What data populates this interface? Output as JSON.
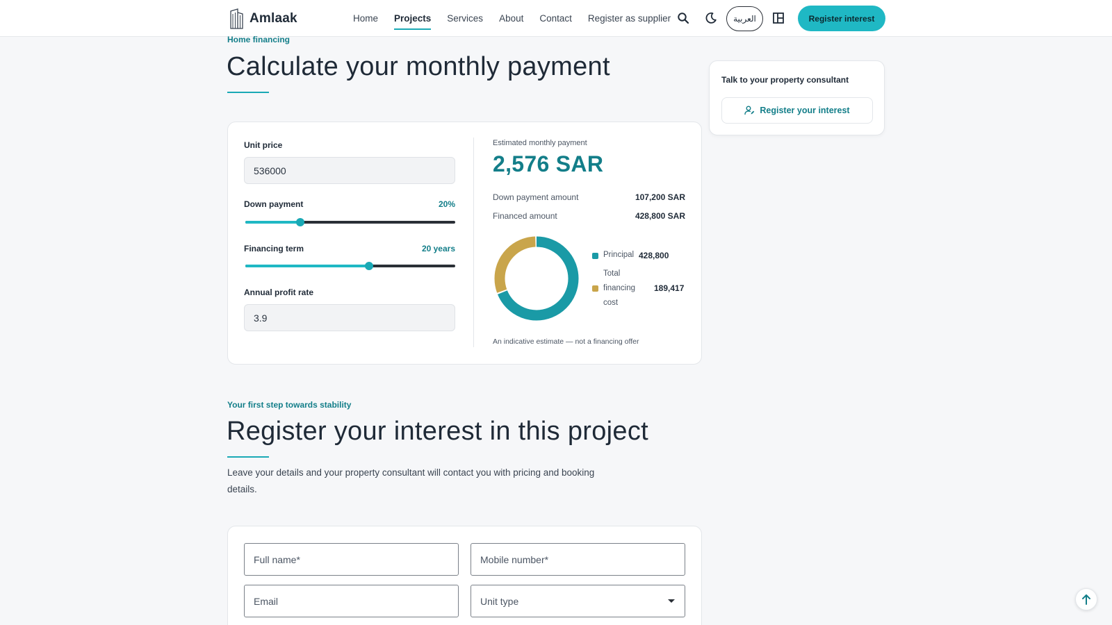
{
  "header": {
    "brand": "Amlaak",
    "nav": [
      "Home",
      "Projects",
      "Services",
      "About",
      "Contact",
      "Register as supplier"
    ],
    "active_nav": "Projects",
    "language": "العربية",
    "cta": "Register interest",
    "icons": [
      "search-icon",
      "moon-icon",
      "layout-icon"
    ]
  },
  "calculator": {
    "eyebrow": "Home financing",
    "title": "Calculate your monthly payment",
    "unit_price_label": "Unit price",
    "unit_price_value": "536000",
    "down_payment_label": "Down payment",
    "down_payment_value": "20%",
    "down_payment_slider": 0.26,
    "term_label": "Financing term",
    "term_value": "20 years",
    "term_slider": 0.59,
    "rate_label": "Annual profit rate",
    "rate_value": "3.9",
    "estimate_label": "Estimated monthly payment",
    "estimate_value": "2,576 SAR",
    "down_amount_label": "Down payment amount",
    "down_amount_value": "107,200 SAR",
    "financed_label": "Financed amount",
    "financed_value": "428,800 SAR",
    "legend": [
      {
        "label": "Principal",
        "value": "428,800",
        "amount": 428800,
        "color": "#1a9aa6"
      },
      {
        "label": "Total financing cost",
        "value": "189,417",
        "amount": 189417,
        "color": "#c9a54b"
      }
    ],
    "disclaimer": "An indicative estimate — not a financing offer"
  },
  "consultant": {
    "title": "Talk to your property consultant",
    "button": "Register your interest"
  },
  "register": {
    "eyebrow": "Your first step towards stability",
    "title": "Register your interest in this project",
    "lead": "Leave your details and your property consultant will contact you with pricing and booking details.",
    "fields": {
      "full_name": "Full name*",
      "mobile": "Mobile number*",
      "email": "Email",
      "unit_type": "Unit type"
    }
  },
  "colors": {
    "accent": "#1fb8c4",
    "accent_dark": "#137e89",
    "gold": "#c9a54b"
  }
}
